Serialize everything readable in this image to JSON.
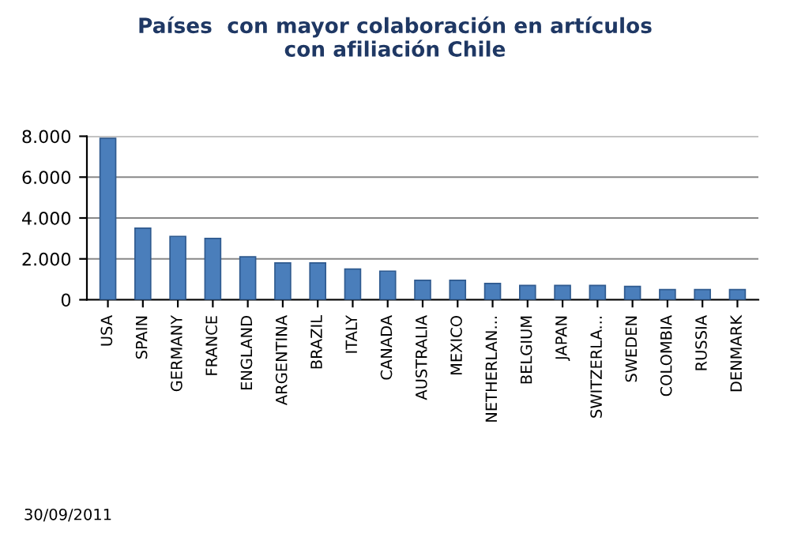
{
  "chart_data": {
    "type": "bar",
    "title": "Países  con mayor colaboración en artículos\ncon afiliación Chile",
    "categories": [
      "USA",
      "SPAIN",
      "GERMANY",
      "FRANCE",
      "ENGLAND",
      "ARGENTINA",
      "BRAZIL",
      "ITALY",
      "CANADA",
      "AUSTRALIA",
      "MEXICO",
      "NETHERLAN...",
      "BELGIUM",
      "JAPAN",
      "SWITZERLA...",
      "SWEDEN",
      "COLOMBIA",
      "RUSSIA",
      "DENMARK"
    ],
    "values": [
      7900,
      3500,
      3100,
      3000,
      2100,
      1800,
      1800,
      1500,
      1400,
      950,
      950,
      800,
      700,
      700,
      700,
      650,
      500,
      500,
      500
    ],
    "color": "#4a7ebb",
    "ylim": [
      0,
      8000
    ],
    "yticks": [
      {
        "value": 0,
        "label": "0"
      },
      {
        "value": 2000,
        "label": "2.000"
      },
      {
        "value": 4000,
        "label": "4.000"
      },
      {
        "value": 6000,
        "label": "6.000"
      },
      {
        "value": 8000,
        "label": "8.000"
      }
    ],
    "grid": "y",
    "annotations": [
      "30/09/2011"
    ]
  }
}
